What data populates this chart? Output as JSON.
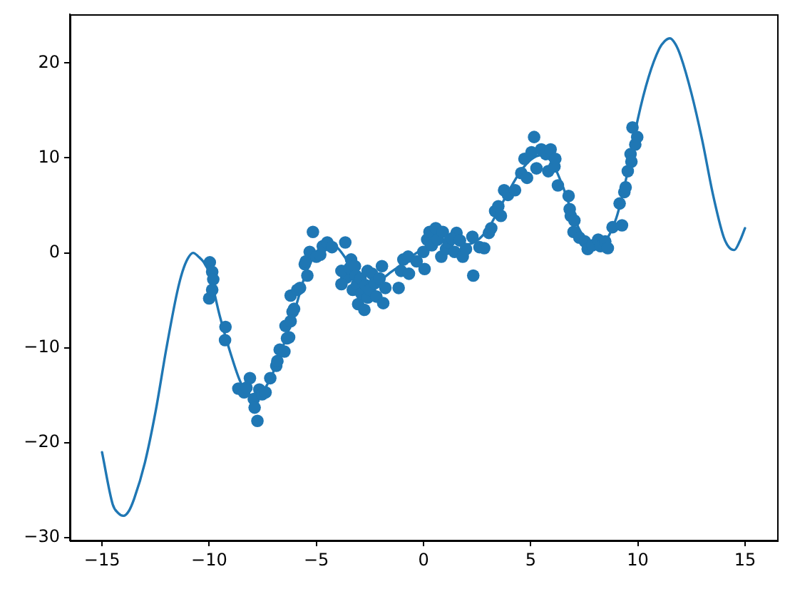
{
  "chart_data": {
    "type": "scatter",
    "xlim": [
      -16.5,
      16.5
    ],
    "ylim": [
      -30.3,
      25.1
    ],
    "xticks": [
      {
        "value": -15,
        "label": "−15"
      },
      {
        "value": -10,
        "label": "−10"
      },
      {
        "value": -5,
        "label": "−5"
      },
      0,
      5,
      10,
      15
    ],
    "yticks": [
      {
        "value": -30,
        "label": "−30"
      },
      {
        "value": -20,
        "label": "−20"
      },
      {
        "value": -10,
        "label": "−10"
      },
      0,
      10,
      20
    ],
    "series": [
      {
        "type": "line",
        "color": "#1f77b4",
        "marker": "none",
        "line_style": "solid",
        "x": [
          -15,
          -14.5,
          -14.25,
          -14,
          -13.75,
          -13.5,
          -13,
          -12.5,
          -12,
          -11.5,
          -11.25,
          -11,
          -10.75,
          -10.5,
          -10.25,
          -10,
          -9.5,
          -9,
          -8.5,
          -8,
          -7.5,
          -7,
          -6.5,
          -6,
          -5.5,
          -5,
          -4.5,
          -4,
          -3.5,
          -3,
          -2.5,
          -2,
          -1.5,
          -1,
          -0.5,
          0,
          0.5,
          1,
          1.5,
          2,
          2.5,
          3,
          3.5,
          4,
          4.5,
          5,
          5.5,
          6,
          6.5,
          7,
          7.5,
          8,
          8.5,
          9,
          9.5,
          10,
          10.5,
          11,
          11.25,
          11.5,
          11.75,
          12,
          12.5,
          13,
          13.5,
          14,
          14.25,
          14.5,
          14.75,
          15
        ],
        "values": [
          -21.0,
          -26.5,
          -27.4,
          -27.7,
          -27.2,
          -25.9,
          -22.1,
          -16.7,
          -10.1,
          -4.2,
          -2.0,
          -0.6,
          0.0,
          -0.4,
          -1.0,
          -2.1,
          -6.7,
          -10.6,
          -13.8,
          -15.0,
          -14.6,
          -12.5,
          -9.5,
          -6.0,
          -2.2,
          0.0,
          1.0,
          0.5,
          -1.0,
          -2.5,
          -3.0,
          -2.8,
          -2.0,
          -1.2,
          -0.3,
          0.5,
          1.3,
          1.4,
          1.1,
          0.9,
          1.3,
          2.5,
          4.5,
          6.6,
          8.5,
          9.8,
          10.3,
          9.5,
          7.0,
          3.8,
          1.6,
          0.8,
          1.3,
          3.7,
          8.3,
          14.1,
          18.5,
          21.5,
          22.3,
          22.6,
          22.0,
          20.7,
          16.8,
          11.9,
          6.2,
          1.7,
          0.6,
          0.3,
          1.2,
          2.6
        ]
      },
      {
        "color": "#1f77b4",
        "marker": "circle",
        "x": [
          -10.0,
          -9.97,
          -9.86,
          -9.81,
          -9.86,
          -9.26,
          -9.24,
          -8.64,
          -8.37,
          -8.26,
          -8.1,
          -7.92,
          -7.88,
          -7.75,
          -7.66,
          -7.53,
          -7.37,
          -7.15,
          -6.87,
          -6.82,
          -6.71,
          -6.49,
          -6.37,
          -6.44,
          -6.27,
          -6.2,
          -6.11,
          -6.04,
          -6.2,
          -5.89,
          -5.76,
          -5.54,
          -5.49,
          -5.42,
          -5.31,
          -5.16,
          -5.0,
          -4.82,
          -4.7,
          -4.49,
          -4.27,
          -3.65,
          -3.6,
          -3.83,
          -3.83,
          -3.45,
          -3.38,
          -3.3,
          -3.2,
          -3.16,
          -3.1,
          -2.94,
          -3.05,
          -2.9,
          -2.76,
          -2.71,
          -2.61,
          -2.6,
          -2.5,
          -2.4,
          -2.28,
          -2.2,
          -1.94,
          -2.05,
          -1.88,
          -1.78,
          -1.16,
          -1.05,
          -0.94,
          -0.68,
          -0.72,
          -0.32,
          0.05,
          -0.01,
          0.17,
          0.28,
          0.57,
          0.39,
          0.65,
          0.83,
          0.9,
          1.05,
          1.16,
          1.54,
          1.32,
          1.45,
          1.7,
          1.83,
          1.98,
          2.28,
          2.32,
          2.61,
          2.83,
          3.05,
          3.16,
          3.34,
          3.49,
          3.61,
          3.76,
          3.94,
          4.27,
          4.56,
          4.71,
          4.83,
          5.04,
          5.16,
          5.27,
          5.49,
          5.71,
          5.82,
          5.93,
          6.11,
          6.15,
          6.27,
          6.77,
          6.82,
          6.87,
          7.0,
          7.04,
          7.27,
          7.53,
          7.66,
          7.88,
          8.15,
          8.26,
          8.48,
          8.6,
          8.82,
          9.15,
          9.26,
          9.37,
          9.43,
          9.53,
          9.66,
          9.7,
          9.75,
          9.88,
          9.97
        ],
        "values": [
          -4.8,
          -1.0,
          -2.0,
          -2.8,
          -3.9,
          -9.2,
          -7.8,
          -14.3,
          -14.7,
          -14.2,
          -13.2,
          -15.4,
          -16.3,
          -17.7,
          -14.4,
          -14.9,
          -14.7,
          -13.2,
          -11.9,
          -11.4,
          -10.2,
          -10.4,
          -9.0,
          -7.7,
          -8.9,
          -7.2,
          -6.2,
          -5.9,
          -4.5,
          -3.9,
          -3.7,
          -1.2,
          -0.9,
          -2.4,
          0.1,
          2.2,
          -0.4,
          -0.2,
          0.7,
          1.1,
          0.6,
          1.1,
          -2.6,
          -1.9,
          -3.3,
          -1.6,
          -0.7,
          -3.9,
          -1.4,
          -2.4,
          -3.3,
          -2.7,
          -5.4,
          -4.3,
          -6.0,
          -3.4,
          -1.9,
          -4.7,
          -3.9,
          -2.2,
          -3.2,
          -4.6,
          -1.4,
          -2.7,
          -5.3,
          -3.7,
          -3.7,
          -1.9,
          -0.7,
          -2.2,
          -0.4,
          -0.9,
          -1.7,
          0.1,
          1.4,
          2.2,
          2.6,
          0.8,
          1.4,
          -0.4,
          2.2,
          0.4,
          1.1,
          2.1,
          1.5,
          0.1,
          1.3,
          -0.4,
          0.4,
          1.7,
          -2.4,
          0.6,
          0.5,
          2.1,
          2.6,
          4.4,
          4.9,
          3.9,
          6.6,
          6.1,
          6.6,
          8.4,
          9.9,
          7.9,
          10.6,
          12.2,
          8.9,
          10.9,
          10.4,
          8.6,
          10.9,
          9.1,
          9.9,
          7.1,
          6.0,
          4.6,
          3.9,
          2.2,
          3.4,
          1.6,
          1.2,
          0.4,
          0.8,
          1.4,
          0.7,
          1.2,
          0.5,
          2.7,
          5.2,
          2.9,
          6.4,
          6.9,
          8.6,
          10.4,
          9.6,
          13.2,
          11.4,
          12.2
        ]
      }
    ]
  }
}
